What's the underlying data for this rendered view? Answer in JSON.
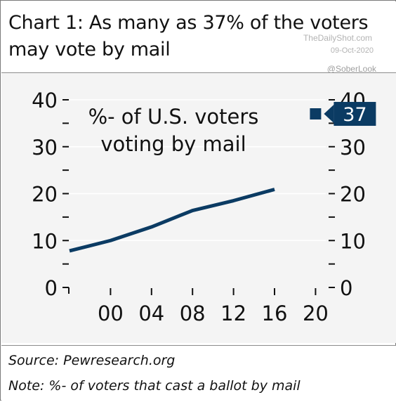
{
  "header": {
    "title": "Chart 1: As many as 37% of the voters may vote by mail",
    "credit": "TheDailyShot.com",
    "date": "09-Oct-2020",
    "handle": "@SoberLook"
  },
  "footer": {
    "source": "Source: Pewresearch.org",
    "note": "Note: %- of voters that cast a ballot by mail"
  },
  "colors": {
    "series": "#0b3b63",
    "plot_background": "#f4f4f4",
    "grid": "#ffffff",
    "text": "#111111"
  },
  "chart_data": {
    "type": "line",
    "title": "",
    "annotation": "%- of U.S. voters voting by mail",
    "xlabel": "",
    "ylabel": "",
    "xlim": [
      1996,
      2021
    ],
    "ylim": [
      0,
      40
    ],
    "x_ticks": [
      2000,
      2004,
      2008,
      2012,
      2016,
      2020
    ],
    "x_tick_labels": [
      "00",
      "04",
      "08",
      "12",
      "16",
      "20"
    ],
    "y_ticks": [
      0,
      10,
      20,
      30,
      40
    ],
    "y_tick_labels": [
      "0",
      "10",
      "20",
      "30",
      "40"
    ],
    "grid": true,
    "legend": "none",
    "series": [
      {
        "values": [
          {
            "x": 1996,
            "y": 7.8
          },
          {
            "x": 2000,
            "y": 10.0
          },
          {
            "x": 2004,
            "y": 12.9
          },
          {
            "x": 2008,
            "y": 16.4
          },
          {
            "x": 2012,
            "y": 18.5
          },
          {
            "x": 2016,
            "y": 20.9
          }
        ]
      }
    ],
    "highlight_point": {
      "x": 2020,
      "y": 37,
      "label": "37"
    }
  }
}
